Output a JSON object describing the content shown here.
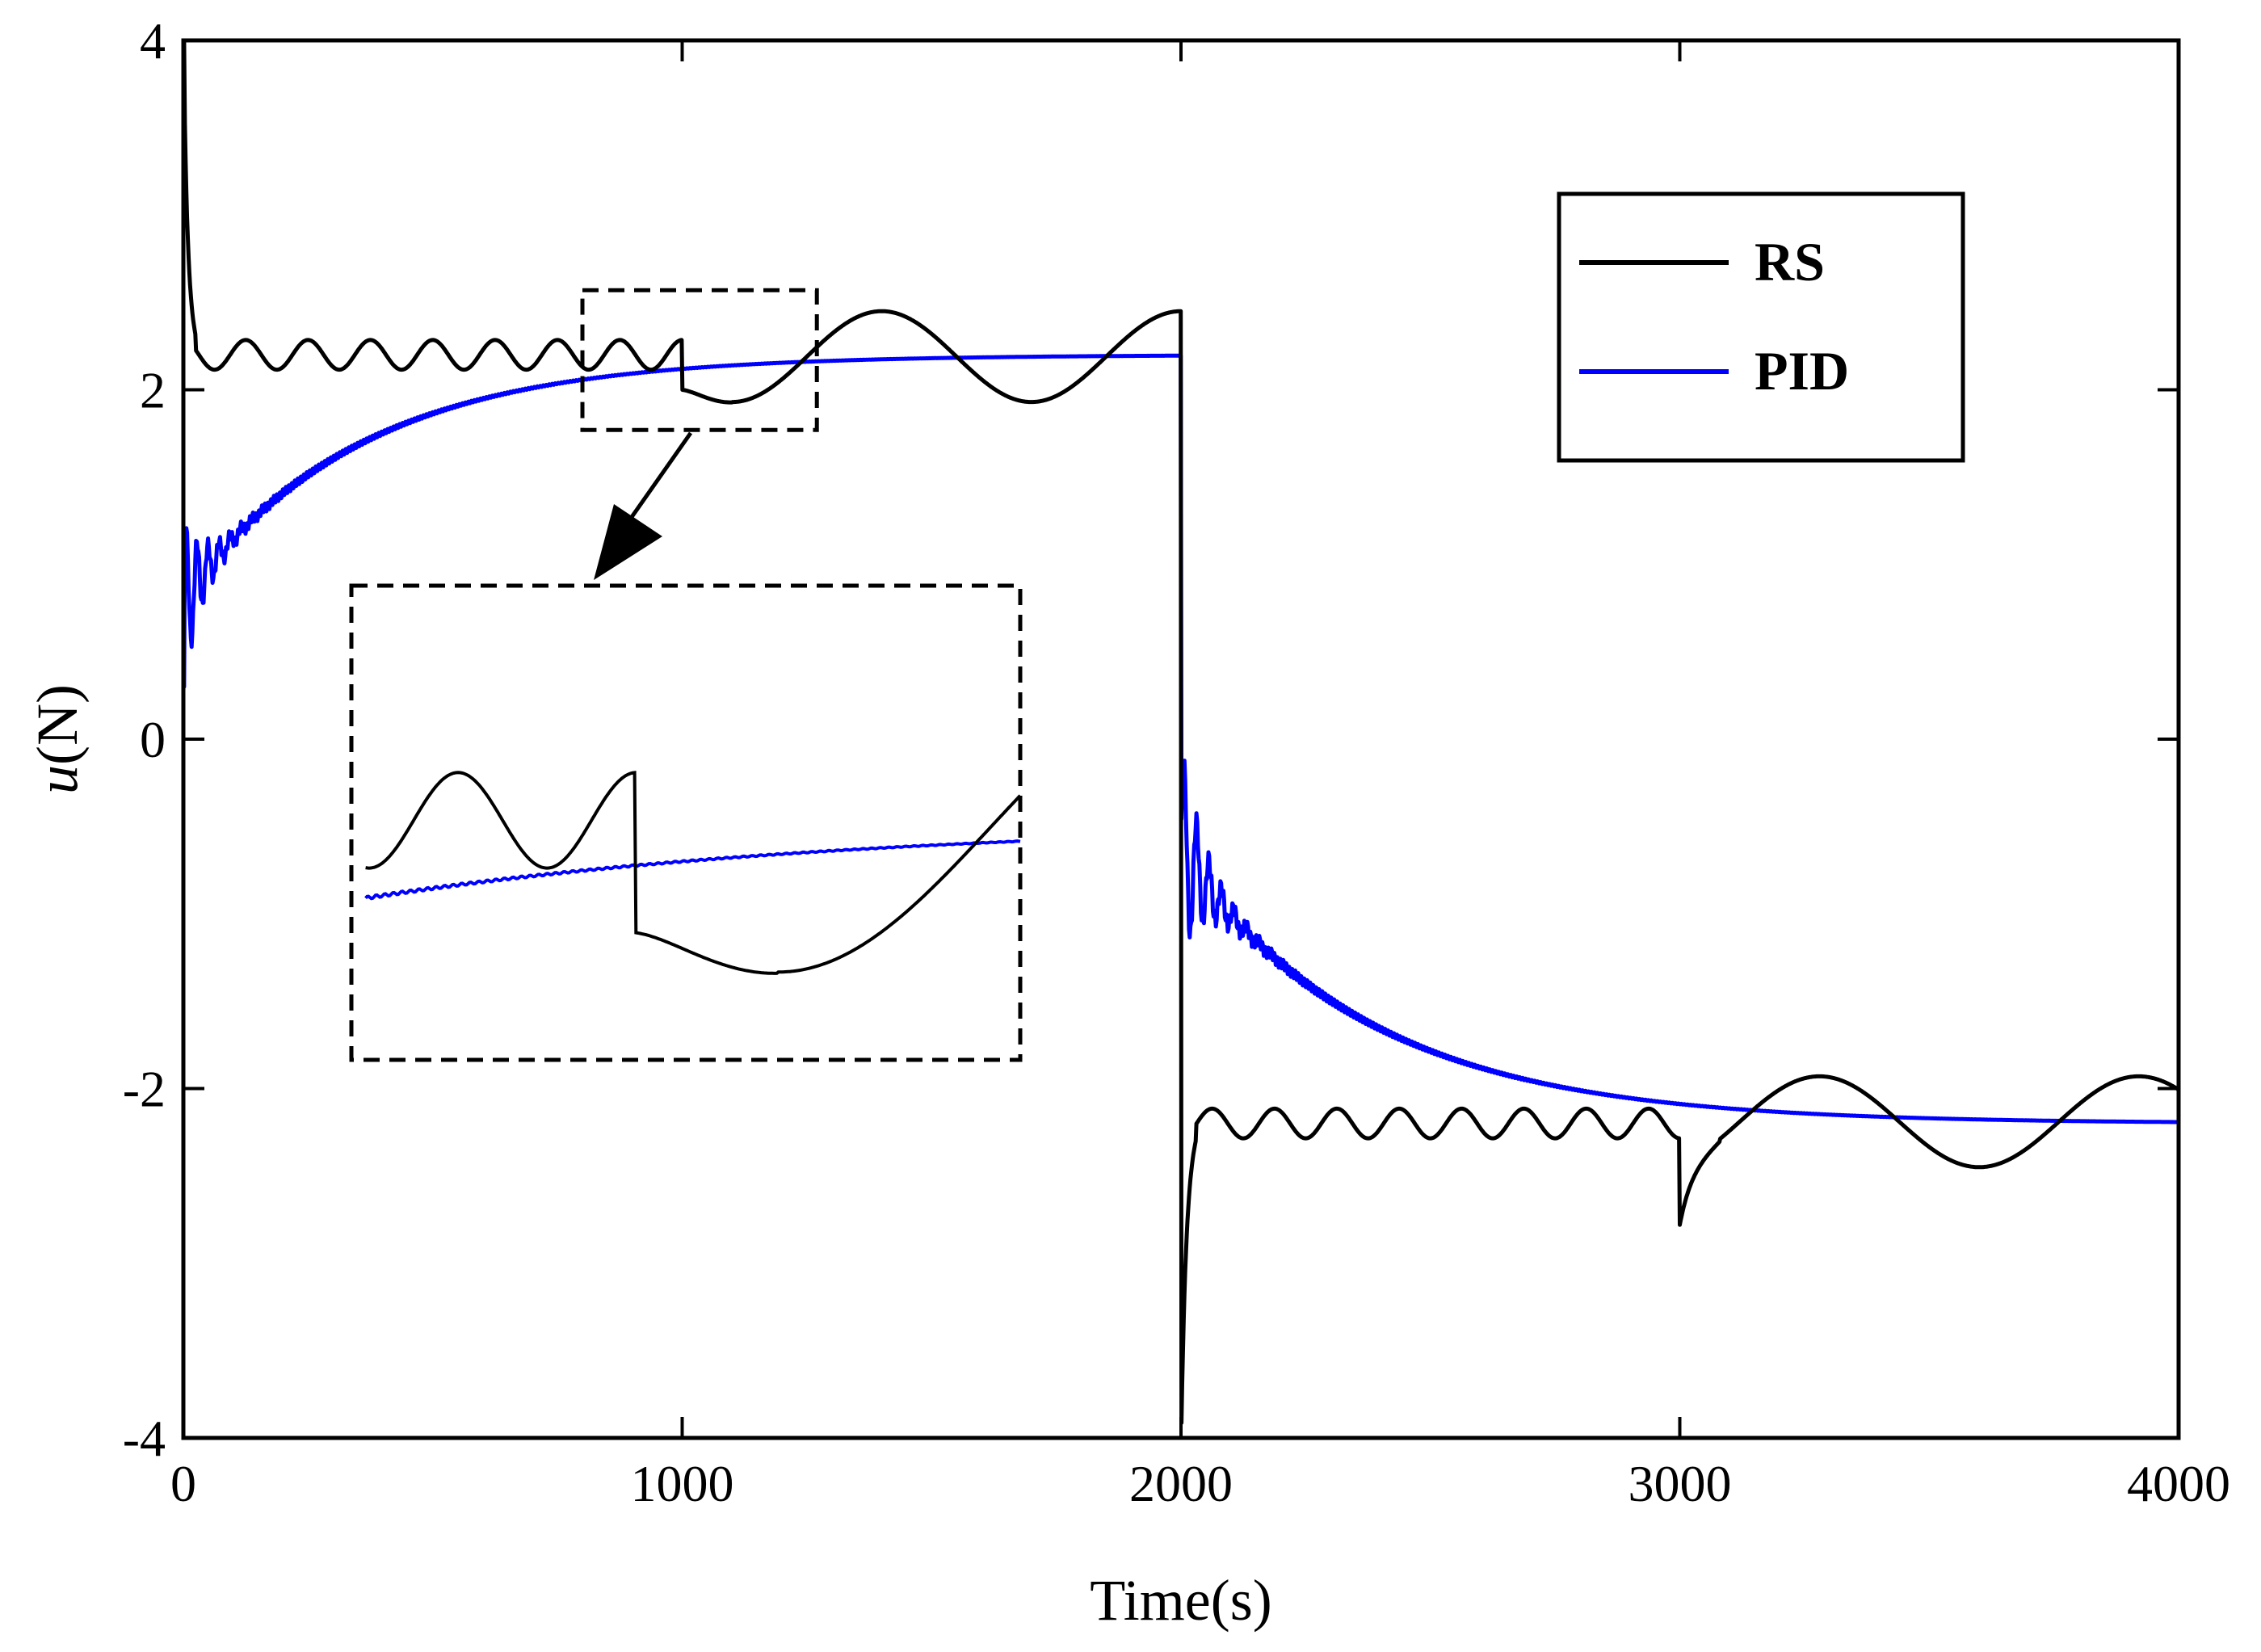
{
  "chart_data": {
    "type": "line",
    "title": "",
    "xlabel": "Time(s)",
    "ylabel": "u(N)",
    "ylabel_italic": "u",
    "ylabel_unit": "(N)",
    "xlim": [
      0,
      4000
    ],
    "ylim": [
      -4,
      4
    ],
    "xticks": [
      0,
      1000,
      2000,
      3000,
      4000
    ],
    "yticks": [
      -4,
      -2,
      0,
      2,
      4
    ],
    "xtick_labels": [
      "0",
      "1000",
      "2000",
      "3000",
      "4000"
    ],
    "ytick_labels": [
      "-4",
      "-2",
      "0",
      "2",
      "4"
    ],
    "grid": false,
    "legend_position": "top-right",
    "series": [
      {
        "name": "RS",
        "color": "#000000",
        "description": "Reaction-based controller; decaying spike at t=0, oscillates around ~2.2 N with period ~125 s until t=1000, then a dip to ~1.95 N and slow oscillation (~2.45 peak at 1400, ~1.93 trough at 1700, 2.45 at 2000); step to -4 at t=2000, then mirrored behaviour around -2.2 N; dip at t=3000 to ~-2.7 then slow oscillation (trough -2.45 at 3600)."
      },
      {
        "name": "PID",
        "color": "#0000ff",
        "description": "Starts ~0.3 N, initial oscillation 0.6–1.5 N, exponential rise to ~2.2 N (time constant ~350 s); at t=2000 drops to ~-0.8 with oscillation, then exponential approach to ~-2.2 N."
      }
    ],
    "annotations": [
      {
        "type": "zoom-box",
        "x_range": [
          800,
          1270
        ],
        "y_range": [
          1.77,
          2.57
        ],
        "style": "dashed"
      },
      {
        "type": "inset",
        "description": "Magnified view of zoom box region around t=1000 s",
        "style": "dashed"
      },
      {
        "type": "arrow",
        "from": "zoom-box",
        "to": "inset"
      }
    ]
  }
}
